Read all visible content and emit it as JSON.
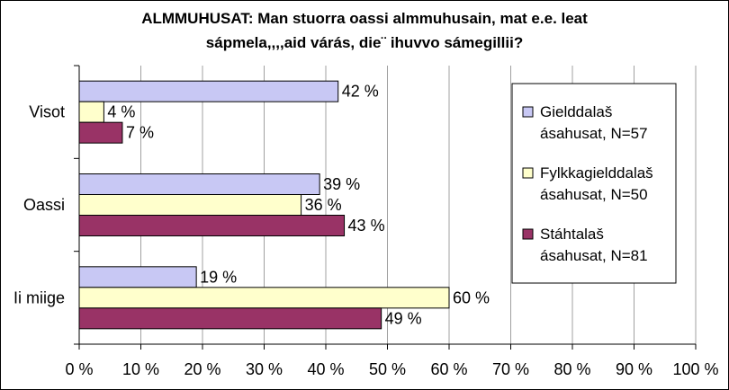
{
  "chart_data": {
    "type": "bar",
    "orientation": "horizontal",
    "title_lines": [
      "ALMMUHUSAT: Man stuorra oassi almmuhusain, mat e.e. leat",
      "sápmela,,,,aid várás, die¨ ihuvvo sámegillii?"
    ],
    "categories": [
      "Visot",
      "Oassi",
      "Ii miige"
    ],
    "series": [
      {
        "name": "Gielddalaš ásahusat, N=57",
        "legend_lines": [
          "Gielddalaš",
          "ásahusat, N=57"
        ],
        "color": "#c8c8f4",
        "values": [
          42,
          39,
          19
        ]
      },
      {
        "name": "Fylkkagielddalaš ásahusat, N=50",
        "legend_lines": [
          "Fylkkagielddalaš",
          "ásahusat, N=50"
        ],
        "color": "#ffffcc",
        "values": [
          4,
          36,
          60
        ]
      },
      {
        "name": "Stáhtalaš ásahusat, N=81",
        "legend_lines": [
          "Stáhtalaš",
          "ásahusat, N=81"
        ],
        "color": "#993366",
        "values": [
          7,
          43,
          49
        ]
      }
    ],
    "value_suffix": " %",
    "xlim": [
      0,
      100
    ],
    "x_ticks": [
      0,
      10,
      20,
      30,
      40,
      50,
      60,
      70,
      80,
      90,
      100
    ],
    "x_tick_labels": [
      "0 %",
      "10 %",
      "20 %",
      "30 %",
      "40 %",
      "50 %",
      "60 %",
      "70 %",
      "80 %",
      "90 %",
      "100 %"
    ],
    "grid": true,
    "legend_position": "right"
  }
}
